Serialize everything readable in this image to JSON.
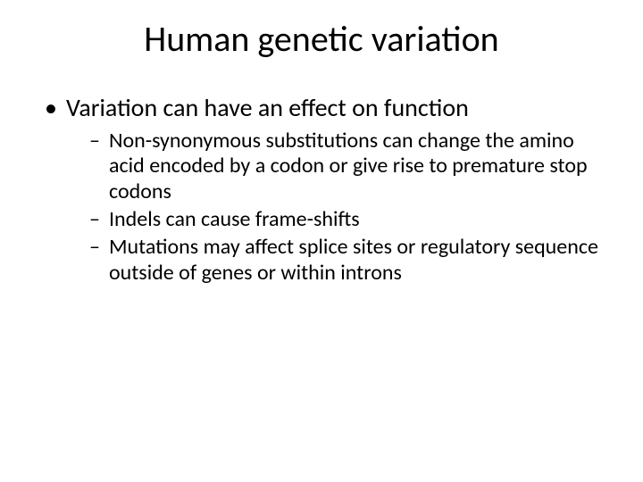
{
  "slide": {
    "title": "Human genetic variation",
    "bullets": [
      {
        "text": "Variation can have an effect on function",
        "sub": [
          "Non-synonymous substitutions can change the amino acid encoded by a codon or give rise to premature stop codons",
          "Indels can cause frame-shifts",
          "Mutations may affect splice sites or regulatory sequence outside of genes or within introns"
        ]
      }
    ]
  },
  "colors": {
    "background": "#ffffff",
    "text": "#000000"
  },
  "typography": {
    "title_fontsize": 40,
    "level1_fontsize": 28,
    "level2_fontsize": 24,
    "font_family": "Calibri"
  }
}
